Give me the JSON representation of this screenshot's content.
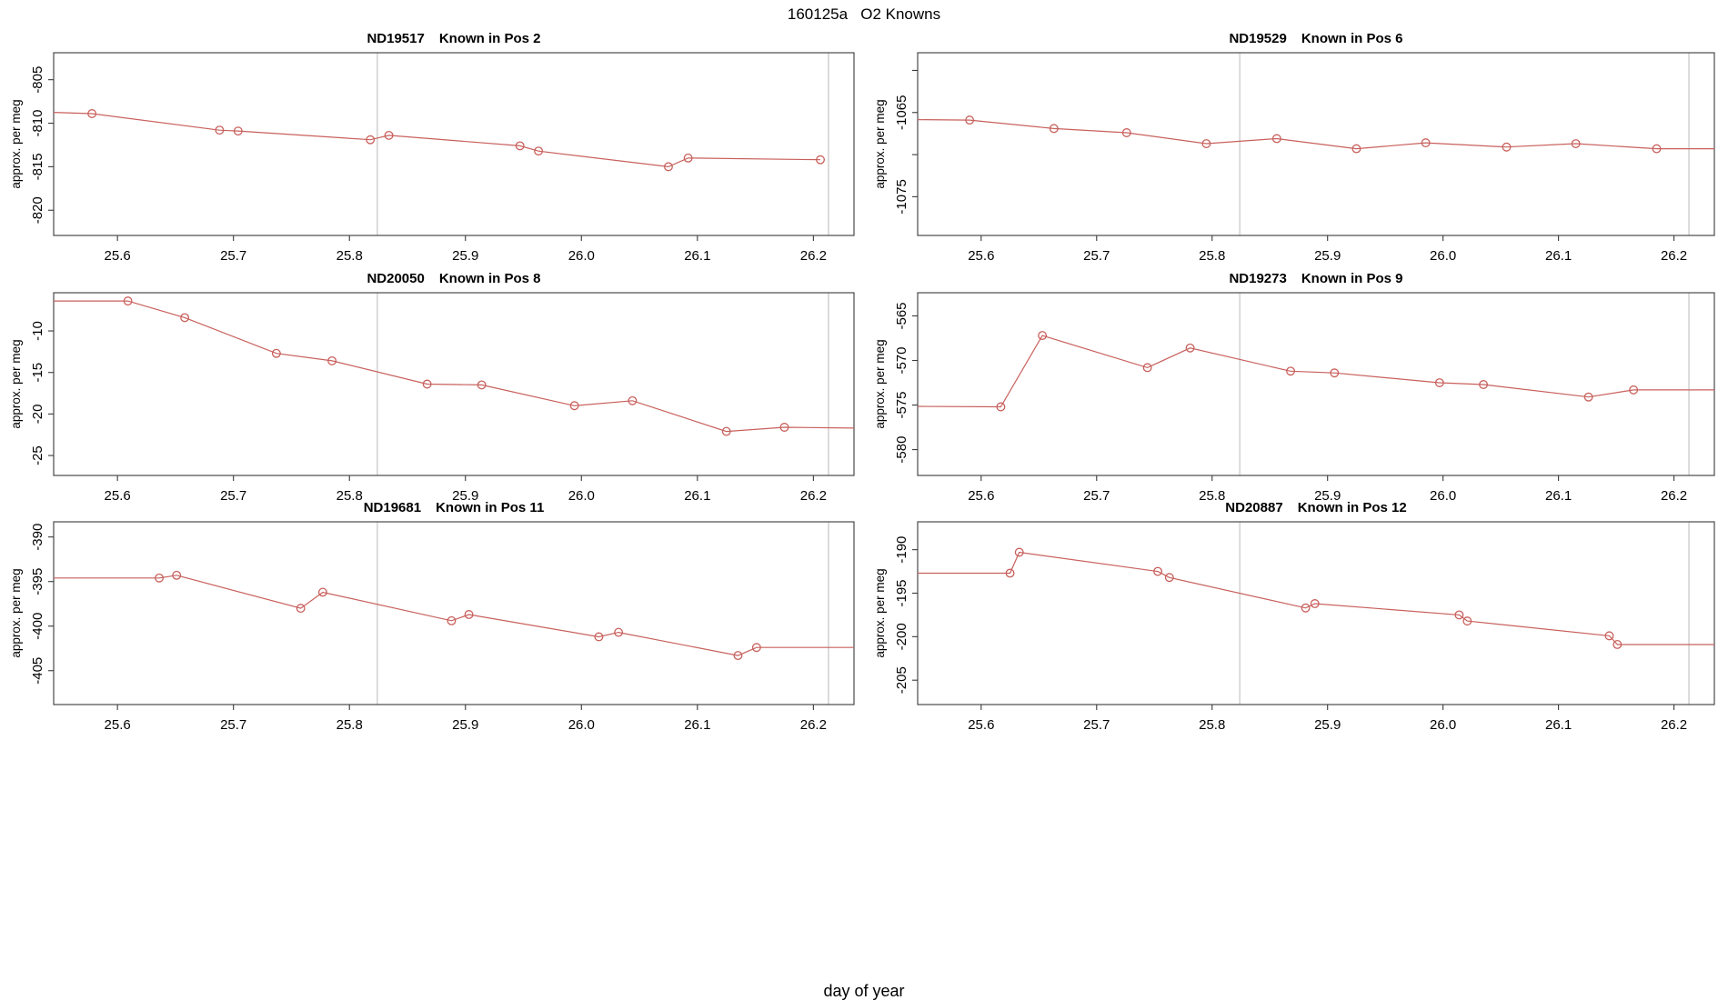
{
  "header": {
    "title": "160125a   O2 Knowns"
  },
  "footer": {
    "xlabel": "day of year"
  },
  "colors": {
    "series": "#C8605C",
    "event_line": "#D8D8D8",
    "axis": "#3A3A3A",
    "text": "#000000",
    "background": "#FFFFFF"
  },
  "chart_data": [
    {
      "type": "line",
      "sample_id": "ND19517",
      "position_label": "Known in Pos 2",
      "ylabel": "approx. per meg",
      "xlim": [
        25.545,
        26.235
      ],
      "ylim": [
        -822.9,
        -801.9
      ],
      "xticks": [
        25.6,
        25.7,
        25.8,
        25.9,
        26.0,
        26.1,
        26.2
      ],
      "yticks": [
        -805,
        -810,
        -815,
        -820
      ],
      "yticks_unlabeled": [],
      "vlines": [
        25.824,
        26.213
      ],
      "x": [
        25.578,
        25.688,
        25.704,
        25.818,
        25.834,
        25.947,
        25.963,
        26.075,
        26.092,
        26.206
      ],
      "y": [
        -808.9,
        -810.8,
        -810.9,
        -811.9,
        -811.4,
        -812.6,
        -813.2,
        -815.0,
        -814.0,
        -814.2
      ],
      "edge_left_y": -808.75,
      "edge_right_y": null
    },
    {
      "type": "line",
      "sample_id": "ND19529",
      "position_label": "Known in Pos 6",
      "ylabel": "approx. per meg",
      "xlim": [
        25.545,
        26.235
      ],
      "ylim": [
        -1079.6,
        -1057.9
      ],
      "xticks": [
        25.6,
        25.7,
        25.8,
        25.9,
        26.0,
        26.1,
        26.2
      ],
      "yticks": [
        -1065,
        -1075
      ],
      "yticks_unlabeled": [
        -1060,
        -1070
      ],
      "vlines": [
        25.824,
        26.213
      ],
      "x": [
        25.59,
        25.663,
        25.726,
        25.795,
        25.856,
        25.925,
        25.985,
        26.055,
        26.115,
        26.185
      ],
      "y": [
        -1065.9,
        -1066.9,
        -1067.4,
        -1068.7,
        -1068.1,
        -1069.3,
        -1068.6,
        -1069.1,
        -1068.7,
        -1069.3
      ],
      "edge_left_y": -1065.85,
      "edge_right_y": -1069.3
    },
    {
      "type": "line",
      "sample_id": "ND20050",
      "position_label": "Known in Pos 8",
      "ylabel": "approx. per meg",
      "xlim": [
        25.545,
        26.235
      ],
      "ylim": [
        -27.4,
        -5.4
      ],
      "xticks": [
        25.6,
        25.7,
        25.8,
        25.9,
        26.0,
        26.1,
        26.2
      ],
      "yticks": [
        -10,
        -15,
        -20,
        -25
      ],
      "yticks_unlabeled": [],
      "vlines": [
        25.824,
        26.213
      ],
      "x": [
        25.609,
        25.658,
        25.737,
        25.785,
        25.867,
        25.914,
        25.994,
        26.044,
        26.125,
        26.175
      ],
      "y": [
        -6.4,
        -8.4,
        -12.7,
        -13.6,
        -16.4,
        -16.5,
        -19.0,
        -18.4,
        -22.1,
        -21.6
      ],
      "edge_left_y": -6.4,
      "edge_right_y": -21.7
    },
    {
      "type": "line",
      "sample_id": "ND19273",
      "position_label": "Known in Pos 9",
      "ylabel": "approx. per meg",
      "xlim": [
        25.545,
        26.235
      ],
      "ylim": [
        -582.9,
        -562.4
      ],
      "xticks": [
        25.6,
        25.7,
        25.8,
        25.9,
        26.0,
        26.1,
        26.2
      ],
      "yticks": [
        -565,
        -570,
        -575,
        -580
      ],
      "yticks_unlabeled": [],
      "vlines": [
        25.824,
        26.213
      ],
      "x": [
        25.617,
        25.653,
        25.744,
        25.781,
        25.868,
        25.906,
        25.997,
        26.035,
        26.126,
        26.165
      ],
      "y": [
        -575.2,
        -567.2,
        -570.8,
        -568.6,
        -571.2,
        -571.4,
        -572.5,
        -572.7,
        -574.1,
        -573.3
      ],
      "edge_left_y": -575.15,
      "edge_right_y": -573.3
    },
    {
      "type": "line",
      "sample_id": "ND19681",
      "position_label": "Known in Pos 11",
      "ylabel": "approx. per meg",
      "xlim": [
        25.545,
        26.235
      ],
      "ylim": [
        -408.8,
        -388.3
      ],
      "xticks": [
        25.6,
        25.7,
        25.8,
        25.9,
        26.0,
        26.1,
        26.2
      ],
      "yticks": [
        -390,
        -395,
        -400,
        -405
      ],
      "yticks_unlabeled": [],
      "vlines": [
        25.824,
        26.213
      ],
      "x": [
        25.636,
        25.651,
        25.758,
        25.777,
        25.888,
        25.903,
        26.015,
        26.032,
        26.135,
        26.151
      ],
      "y": [
        -394.6,
        -394.3,
        -398.0,
        -396.2,
        -399.4,
        -398.7,
        -401.2,
        -400.7,
        -403.3,
        -402.4
      ],
      "edge_left_y": -394.6,
      "edge_right_y": -402.4
    },
    {
      "type": "line",
      "sample_id": "ND20887",
      "position_label": "Known in Pos 12",
      "ylabel": "approx. per meg",
      "xlim": [
        25.545,
        26.235
      ],
      "ylim": [
        -207.8,
        -186.8
      ],
      "xticks": [
        25.6,
        25.7,
        25.8,
        25.9,
        26.0,
        26.1,
        26.2
      ],
      "yticks": [
        -190,
        -195,
        -200,
        -205
      ],
      "yticks_unlabeled": [],
      "vlines": [
        25.824,
        26.213
      ],
      "x": [
        25.625,
        25.633,
        25.753,
        25.763,
        25.881,
        25.889,
        26.014,
        26.021,
        26.144,
        26.151
      ],
      "y": [
        -192.7,
        -190.3,
        -192.5,
        -193.2,
        -196.7,
        -196.2,
        -197.5,
        -198.2,
        -199.9,
        -200.9
      ],
      "edge_left_y": -192.7,
      "edge_right_y": -200.9
    }
  ]
}
